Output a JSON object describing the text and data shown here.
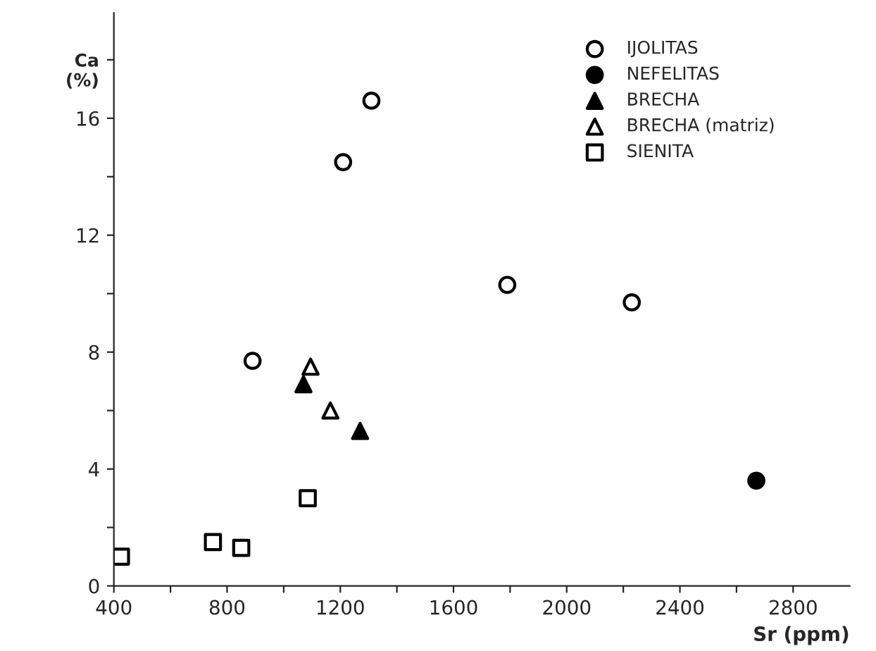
{
  "chart_data": {
    "type": "scatter",
    "xlabel": "Sr (ppm)",
    "ylabel": "Ca\n(%)",
    "xlim": [
      400,
      3000
    ],
    "ylim": [
      0,
      19.6
    ],
    "xticks": [
      400,
      {
        "value": 600,
        "label": null
      },
      800,
      {
        "value": 1000,
        "label": null
      },
      1200,
      {
        "value": 1400,
        "label": null
      },
      1600,
      {
        "value": 1800,
        "label": null
      },
      2000,
      {
        "value": 2200,
        "label": null
      },
      2400,
      {
        "value": 2600,
        "label": null
      },
      2800
    ],
    "yticks": [
      0,
      {
        "value": 2,
        "label": null
      },
      4,
      {
        "value": 6,
        "label": null
      },
      8,
      {
        "value": 10,
        "label": null
      },
      12,
      {
        "value": 14,
        "label": null
      },
      16,
      {
        "value": 18,
        "label": null
      }
    ],
    "grid": false,
    "legend": "top right",
    "series": [
      {
        "name": "IJOLITAS",
        "color": "#ffffff",
        "marker": "circle",
        "x": [
          890,
          1210,
          1310,
          1790,
          2230
        ],
        "values": [
          7.7,
          14.5,
          16.6,
          10.3,
          9.7
        ]
      },
      {
        "name": "NEFELITAS",
        "color": "#000000",
        "marker": "circle",
        "x": [
          2670
        ],
        "values": [
          3.6
        ]
      },
      {
        "name": "BRECHA",
        "color": "#000000",
        "marker": "triangle",
        "x": [
          1070,
          1270
        ],
        "values": [
          6.9,
          5.3
        ]
      },
      {
        "name": "BRECHA (matriz)",
        "color": "#ffffff",
        "marker": "triangle",
        "x": [
          1095,
          1165
        ],
        "values": [
          7.5,
          6.0
        ]
      },
      {
        "name": "SIENITA",
        "color": "#ffffff",
        "marker": "square",
        "x": [
          425,
          750,
          850,
          1085
        ],
        "values": [
          1.0,
          1.5,
          1.3,
          3.0
        ]
      }
    ]
  }
}
